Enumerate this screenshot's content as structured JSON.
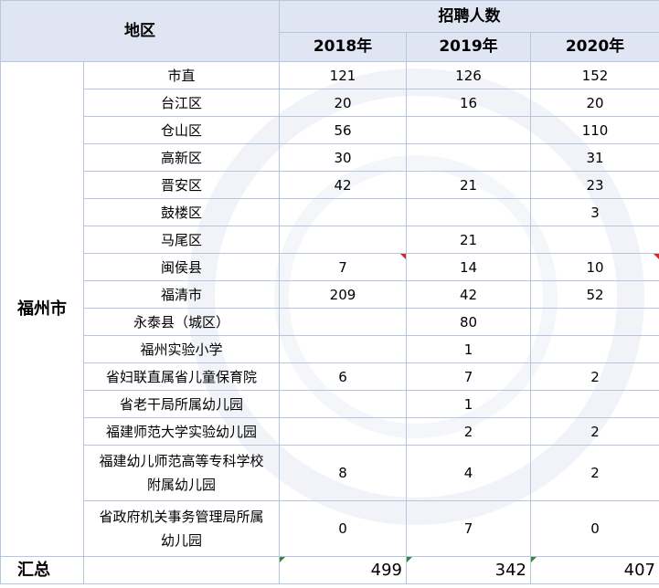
{
  "table": {
    "region_header": "地区",
    "metric_header": "招聘人数",
    "years": [
      "2018年",
      "2019年",
      "2020年"
    ],
    "city": "福州市",
    "rows": [
      {
        "name": "市直",
        "v2018": "121",
        "v2019": "126",
        "v2020": "152"
      },
      {
        "name": "台江区",
        "v2018": "20",
        "v2019": "16",
        "v2020": "20"
      },
      {
        "name": "仓山区",
        "v2018": "56",
        "v2019": "",
        "v2020": "110"
      },
      {
        "name": "高新区",
        "v2018": "30",
        "v2019": "",
        "v2020": "31"
      },
      {
        "name": "晋安区",
        "v2018": "42",
        "v2019": "21",
        "v2020": "23"
      },
      {
        "name": "鼓楼区",
        "v2018": "",
        "v2019": "",
        "v2020": "3"
      },
      {
        "name": "马尾区",
        "v2018": "",
        "v2019": "21",
        "v2020": ""
      },
      {
        "name": "闽侯县",
        "v2018": "7",
        "v2019": "14",
        "v2020": "10"
      },
      {
        "name": "福清市",
        "v2018": "209",
        "v2019": "42",
        "v2020": "52"
      },
      {
        "name": "永泰县（城区）",
        "v2018": "",
        "v2019": "80",
        "v2020": ""
      },
      {
        "name": "福州实验小学",
        "v2018": "",
        "v2019": "1",
        "v2020": ""
      },
      {
        "name": "省妇联直属省儿童保育院",
        "v2018": "6",
        "v2019": "7",
        "v2020": "2"
      },
      {
        "name": "省老干局所属幼儿园",
        "v2018": "",
        "v2019": "1",
        "v2020": ""
      },
      {
        "name": "福建师范大学实验幼儿园",
        "v2018": "",
        "v2019": "2",
        "v2020": "2"
      },
      {
        "name_line1": "福建幼儿师范高等专科学校",
        "name_line2": "附属幼儿园",
        "v2018": "8",
        "v2019": "4",
        "v2020": "2"
      },
      {
        "name_line1": "省政府机关事务管理局所属",
        "name_line2": "幼儿园",
        "v2018": "0",
        "v2019": "7",
        "v2020": "0"
      }
    ],
    "total_label": "汇总",
    "totals": {
      "v2018": "499",
      "v2019": "342",
      "v2020": "407"
    }
  }
}
